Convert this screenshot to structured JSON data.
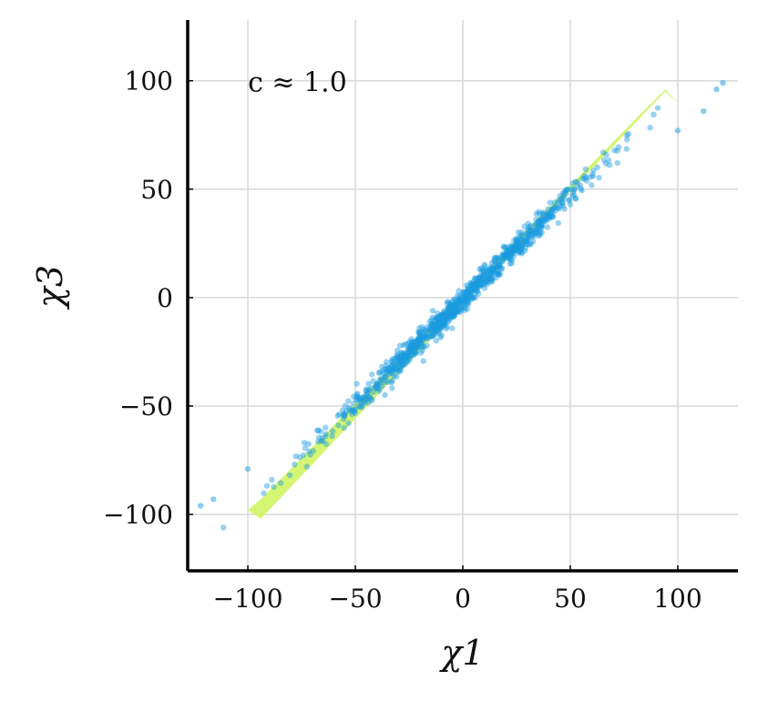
{
  "chart_data": {
    "type": "scatter",
    "title": "",
    "xlabel": "χ1",
    "ylabel": "χ3",
    "xlim": [
      -128,
      128
    ],
    "ylim": [
      -126,
      128
    ],
    "xticks": [
      -100,
      -50,
      0,
      50,
      100
    ],
    "yticks": [
      -100,
      -50,
      0,
      50,
      100
    ],
    "xtick_labels": [
      "−100",
      "−50",
      "0",
      "50",
      "100"
    ],
    "ytick_labels": [
      "−100",
      "−50",
      "0",
      "50",
      "100"
    ],
    "grid": true,
    "annotation": "c ≈ 1.0",
    "band": {
      "color": "#ccf55a",
      "x_range": [
        -100,
        100
      ],
      "slope": 1.0,
      "half_width": 4
    },
    "series": [
      {
        "marker_color": "#1a9be0",
        "points_shown": 1000,
        "approx_relation": "χ3 ≈ χ1",
        "extreme_points": [
          {
            "x": -122,
            "y": -96
          },
          {
            "x": -116,
            "y": -93
          },
          {
            "x": -100,
            "y": -79
          },
          {
            "x": 100,
            "y": 77
          },
          {
            "x": 112,
            "y": 86
          },
          {
            "x": 118,
            "y": 96
          },
          {
            "x": 121,
            "y": 99
          }
        ]
      }
    ]
  }
}
